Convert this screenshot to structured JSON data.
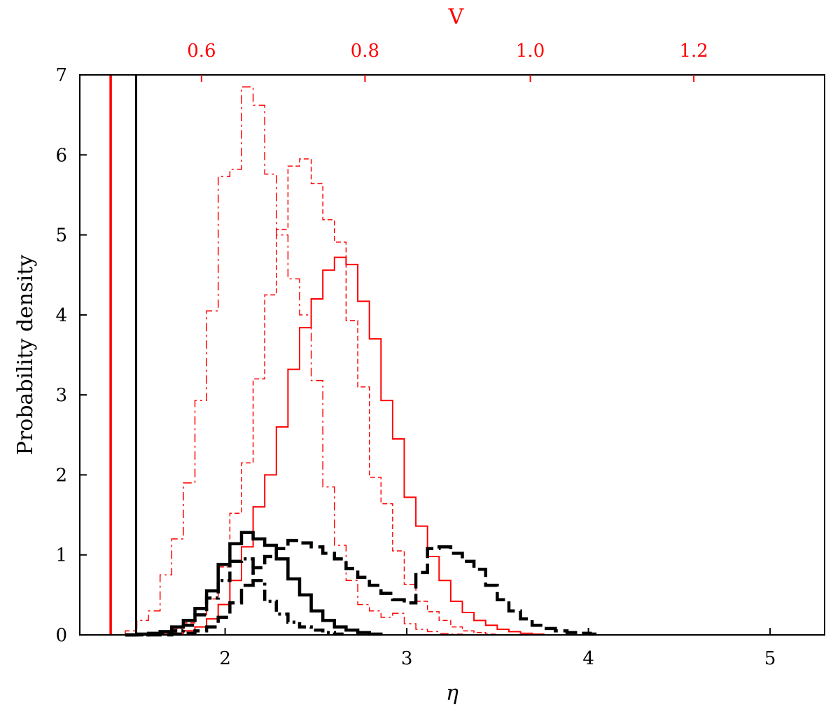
{
  "chart_data": {
    "type": "step",
    "xlabel": "η",
    "ylabel": "Probability density",
    "top_xlabel": "V",
    "xlim": [
      1.2,
      5.3
    ],
    "ylim": [
      0,
      7
    ],
    "x_ticks": [
      "2",
      "3",
      "4",
      "5"
    ],
    "y_ticks": [
      "0",
      "1",
      "2",
      "3",
      "4",
      "5",
      "6",
      "7"
    ],
    "top_axis": {
      "label": "V",
      "color": "#ff0000",
      "ticks": [
        {
          "label": "0.6",
          "eta": 1.87
        },
        {
          "label": "0.8",
          "eta": 2.77
        },
        {
          "label": "1.0",
          "eta": 3.68
        },
        {
          "label": "1.2",
          "eta": 4.58
        }
      ]
    },
    "vertical_lines": [
      {
        "x": 1.37,
        "color": "#ff0000",
        "width": 3.5
      },
      {
        "x": 1.51,
        "color": "#000000",
        "width": 3
      }
    ],
    "bin_width": 0.064,
    "series": [
      {
        "style": "dashdot",
        "color": "#ff0000",
        "width": 1.5,
        "start": 1.45,
        "values": [
          0.05,
          0.18,
          0.3,
          0.75,
          1.2,
          1.9,
          2.93,
          4.05,
          5.73,
          5.82,
          6.85,
          6.62,
          5.76,
          5.0,
          4.45,
          4.0,
          3.18,
          1.85,
          1.12,
          0.68,
          0.38,
          0.3,
          0.22,
          0.27,
          0.14,
          0.07,
          0.04,
          0.02,
          0.01
        ]
      },
      {
        "style": "dashed",
        "color": "#ff0000",
        "width": 1.5,
        "start": 1.45,
        "values": [
          0.0,
          0.01,
          0.02,
          0.04,
          0.08,
          0.15,
          0.25,
          0.45,
          0.85,
          1.52,
          2.15,
          3.2,
          4.25,
          5.07,
          5.86,
          5.95,
          5.64,
          5.19,
          4.91,
          3.93,
          3.1,
          1.97,
          1.64,
          1.05,
          0.63,
          0.42,
          0.29,
          0.18,
          0.1,
          0.05,
          0.03,
          0.01
        ]
      },
      {
        "style": "solid",
        "color": "#ff0000",
        "width": 2,
        "start": 1.45,
        "values": [
          0.0,
          0.0,
          0.0,
          0.01,
          0.02,
          0.05,
          0.1,
          0.2,
          0.38,
          0.68,
          1.1,
          1.6,
          2.0,
          2.6,
          3.32,
          3.84,
          4.2,
          4.56,
          4.72,
          4.63,
          4.17,
          3.7,
          2.93,
          2.45,
          1.72,
          1.36,
          0.98,
          0.68,
          0.42,
          0.28,
          0.18,
          0.12,
          0.07,
          0.04,
          0.02,
          0.01
        ]
      },
      {
        "style": "solid",
        "color": "#000000",
        "width": 4.5,
        "start": 1.45,
        "values": [
          0.0,
          0.01,
          0.02,
          0.04,
          0.1,
          0.18,
          0.33,
          0.55,
          0.88,
          1.14,
          1.28,
          1.2,
          1.12,
          0.95,
          0.7,
          0.5,
          0.3,
          0.18,
          0.1,
          0.06,
          0.03,
          0.01
        ]
      },
      {
        "style": "dashdot",
        "color": "#000000",
        "width": 4.5,
        "start": 1.45,
        "values": [
          0.0,
          0.0,
          0.01,
          0.02,
          0.05,
          0.12,
          0.25,
          0.46,
          0.68,
          0.92,
          0.95,
          0.68,
          0.42,
          0.26,
          0.16,
          0.1,
          0.06,
          0.03,
          0.01
        ]
      },
      {
        "style": "dashed",
        "color": "#000000",
        "width": 4.5,
        "start": 1.45,
        "values": [
          0.0,
          0.0,
          0.0,
          0.0,
          0.01,
          0.02,
          0.05,
          0.1,
          0.22,
          0.4,
          0.62,
          0.84,
          0.98,
          1.08,
          1.18,
          1.15,
          1.1,
          1.02,
          0.95,
          0.83,
          0.72,
          0.62,
          0.52,
          0.44,
          0.4,
          0.78,
          1.08,
          1.1,
          1.02,
          0.92,
          0.82,
          0.62,
          0.44,
          0.3,
          0.2,
          0.12,
          0.08,
          0.05,
          0.03,
          0.02,
          0.01
        ]
      }
    ]
  }
}
